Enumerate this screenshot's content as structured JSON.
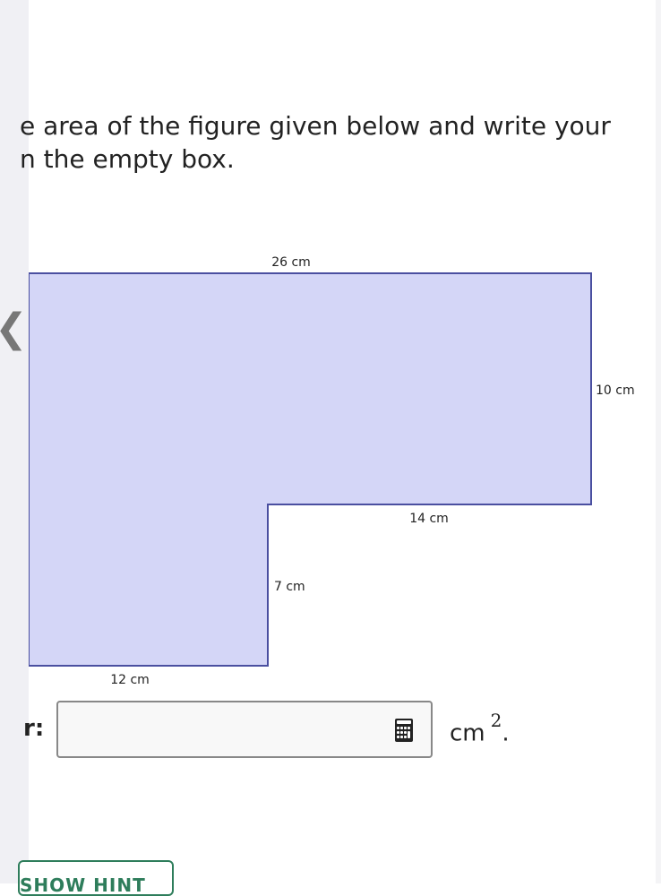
{
  "question": {
    "line1": "e area of the figure given below and write your",
    "line2": "n the empty box."
  },
  "figure": {
    "labels": {
      "top": "26 cm",
      "right": "10 cm",
      "step_horizontal": "14 cm",
      "step_vertical": "7 cm",
      "bottom": "12 cm"
    },
    "fill_color": "#d4d6f7",
    "stroke_color": "#4a4fa0"
  },
  "answer": {
    "label": "r:",
    "value": "",
    "unit": "cm",
    "unit_exponent": "2",
    "unit_suffix": ".",
    "icon": "calculator-icon"
  },
  "hint_button": {
    "label": "SHOW HINT"
  },
  "nav": {
    "back_icon": "chevron-left-icon"
  }
}
